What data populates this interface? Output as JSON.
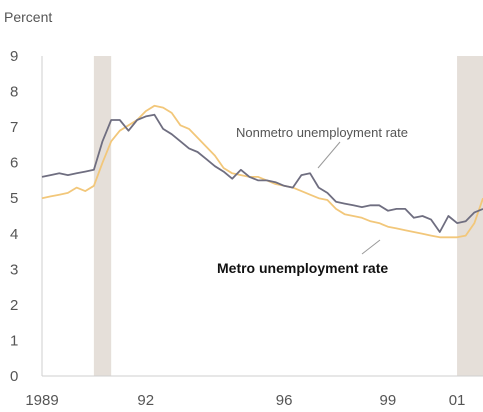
{
  "chart_data": {
    "type": "line",
    "ylabel": "Percent",
    "ylim": [
      0,
      9
    ],
    "xlim": [
      1989.0,
      2001.75
    ],
    "yticks": [
      0,
      1,
      2,
      3,
      4,
      5,
      6,
      7,
      8,
      9
    ],
    "xticks": [
      {
        "value": 1989.0,
        "label": "1989"
      },
      {
        "value": 1992.0,
        "label": "92"
      },
      {
        "value": 1996.0,
        "label": "96"
      },
      {
        "value": 1999.0,
        "label": "99"
      },
      {
        "value": 2001.0,
        "label": "01"
      }
    ],
    "recessions": [
      [
        1990.5,
        1991.0
      ],
      [
        2001.0,
        2001.75
      ]
    ],
    "recession_color": "#e5dfd9",
    "series": [
      {
        "name": "Nonmetro unemployment rate",
        "color": "#6f6e80",
        "x": [
          1989.0,
          1989.25,
          1989.5,
          1989.75,
          1990.0,
          1990.25,
          1990.5,
          1990.75,
          1991.0,
          1991.25,
          1991.5,
          1991.75,
          1992.0,
          1992.25,
          1992.5,
          1992.75,
          1993.0,
          1993.25,
          1993.5,
          1993.75,
          1994.0,
          1994.25,
          1994.5,
          1994.75,
          1995.0,
          1995.25,
          1995.5,
          1995.75,
          1996.0,
          1996.25,
          1996.5,
          1996.75,
          1997.0,
          1997.25,
          1997.5,
          1997.75,
          1998.0,
          1998.25,
          1998.5,
          1998.75,
          1999.0,
          1999.25,
          1999.5,
          1999.75,
          2000.0,
          2000.25,
          2000.5,
          2000.75,
          2001.0,
          2001.25,
          2001.5,
          2001.75
        ],
        "values": [
          5.6,
          5.65,
          5.7,
          5.65,
          5.7,
          5.75,
          5.8,
          6.6,
          7.2,
          7.2,
          6.9,
          7.2,
          7.3,
          7.35,
          6.95,
          6.8,
          6.6,
          6.4,
          6.3,
          6.1,
          5.9,
          5.75,
          5.55,
          5.8,
          5.6,
          5.5,
          5.5,
          5.45,
          5.35,
          5.3,
          5.65,
          5.7,
          5.3,
          5.15,
          4.9,
          4.85,
          4.8,
          4.75,
          4.8,
          4.8,
          4.65,
          4.7,
          4.7,
          4.45,
          4.5,
          4.4,
          4.05,
          4.5,
          4.3,
          4.35,
          4.6,
          4.7
        ]
      },
      {
        "name": "Metro unemployment rate",
        "color": "#f2c77a",
        "x": [
          1989.0,
          1989.25,
          1989.5,
          1989.75,
          1990.0,
          1990.25,
          1990.5,
          1990.75,
          1991.0,
          1991.25,
          1991.5,
          1991.75,
          1992.0,
          1992.25,
          1992.5,
          1992.75,
          1993.0,
          1993.25,
          1993.5,
          1993.75,
          1994.0,
          1994.25,
          1994.5,
          1994.75,
          1995.0,
          1995.25,
          1995.5,
          1995.75,
          1996.0,
          1996.25,
          1996.5,
          1996.75,
          1997.0,
          1997.25,
          1997.5,
          1997.75,
          1998.0,
          1998.25,
          1998.5,
          1998.75,
          1999.0,
          1999.25,
          1999.5,
          1999.75,
          2000.0,
          2000.25,
          2000.5,
          2000.75,
          2001.0,
          2001.25,
          2001.5,
          2001.75
        ],
        "values": [
          5.0,
          5.05,
          5.1,
          5.15,
          5.3,
          5.2,
          5.35,
          6.0,
          6.6,
          6.9,
          7.05,
          7.2,
          7.45,
          7.6,
          7.55,
          7.4,
          7.05,
          6.95,
          6.7,
          6.45,
          6.2,
          5.85,
          5.7,
          5.65,
          5.6,
          5.6,
          5.5,
          5.4,
          5.35,
          5.3,
          5.2,
          5.1,
          5.0,
          4.95,
          4.7,
          4.55,
          4.5,
          4.45,
          4.35,
          4.3,
          4.2,
          4.15,
          4.1,
          4.05,
          4.0,
          3.95,
          3.9,
          3.9,
          3.9,
          3.95,
          4.3,
          5.0
        ]
      }
    ],
    "annotations": [
      {
        "text": "Nonmetro unemployment rate",
        "series": "Nonmetro unemployment rate",
        "x": 1999.7,
        "y": 6.3
      },
      {
        "text": "Metro unemployment rate",
        "series": "Metro unemployment rate",
        "x": 1999.0,
        "y": 2.85
      }
    ]
  }
}
